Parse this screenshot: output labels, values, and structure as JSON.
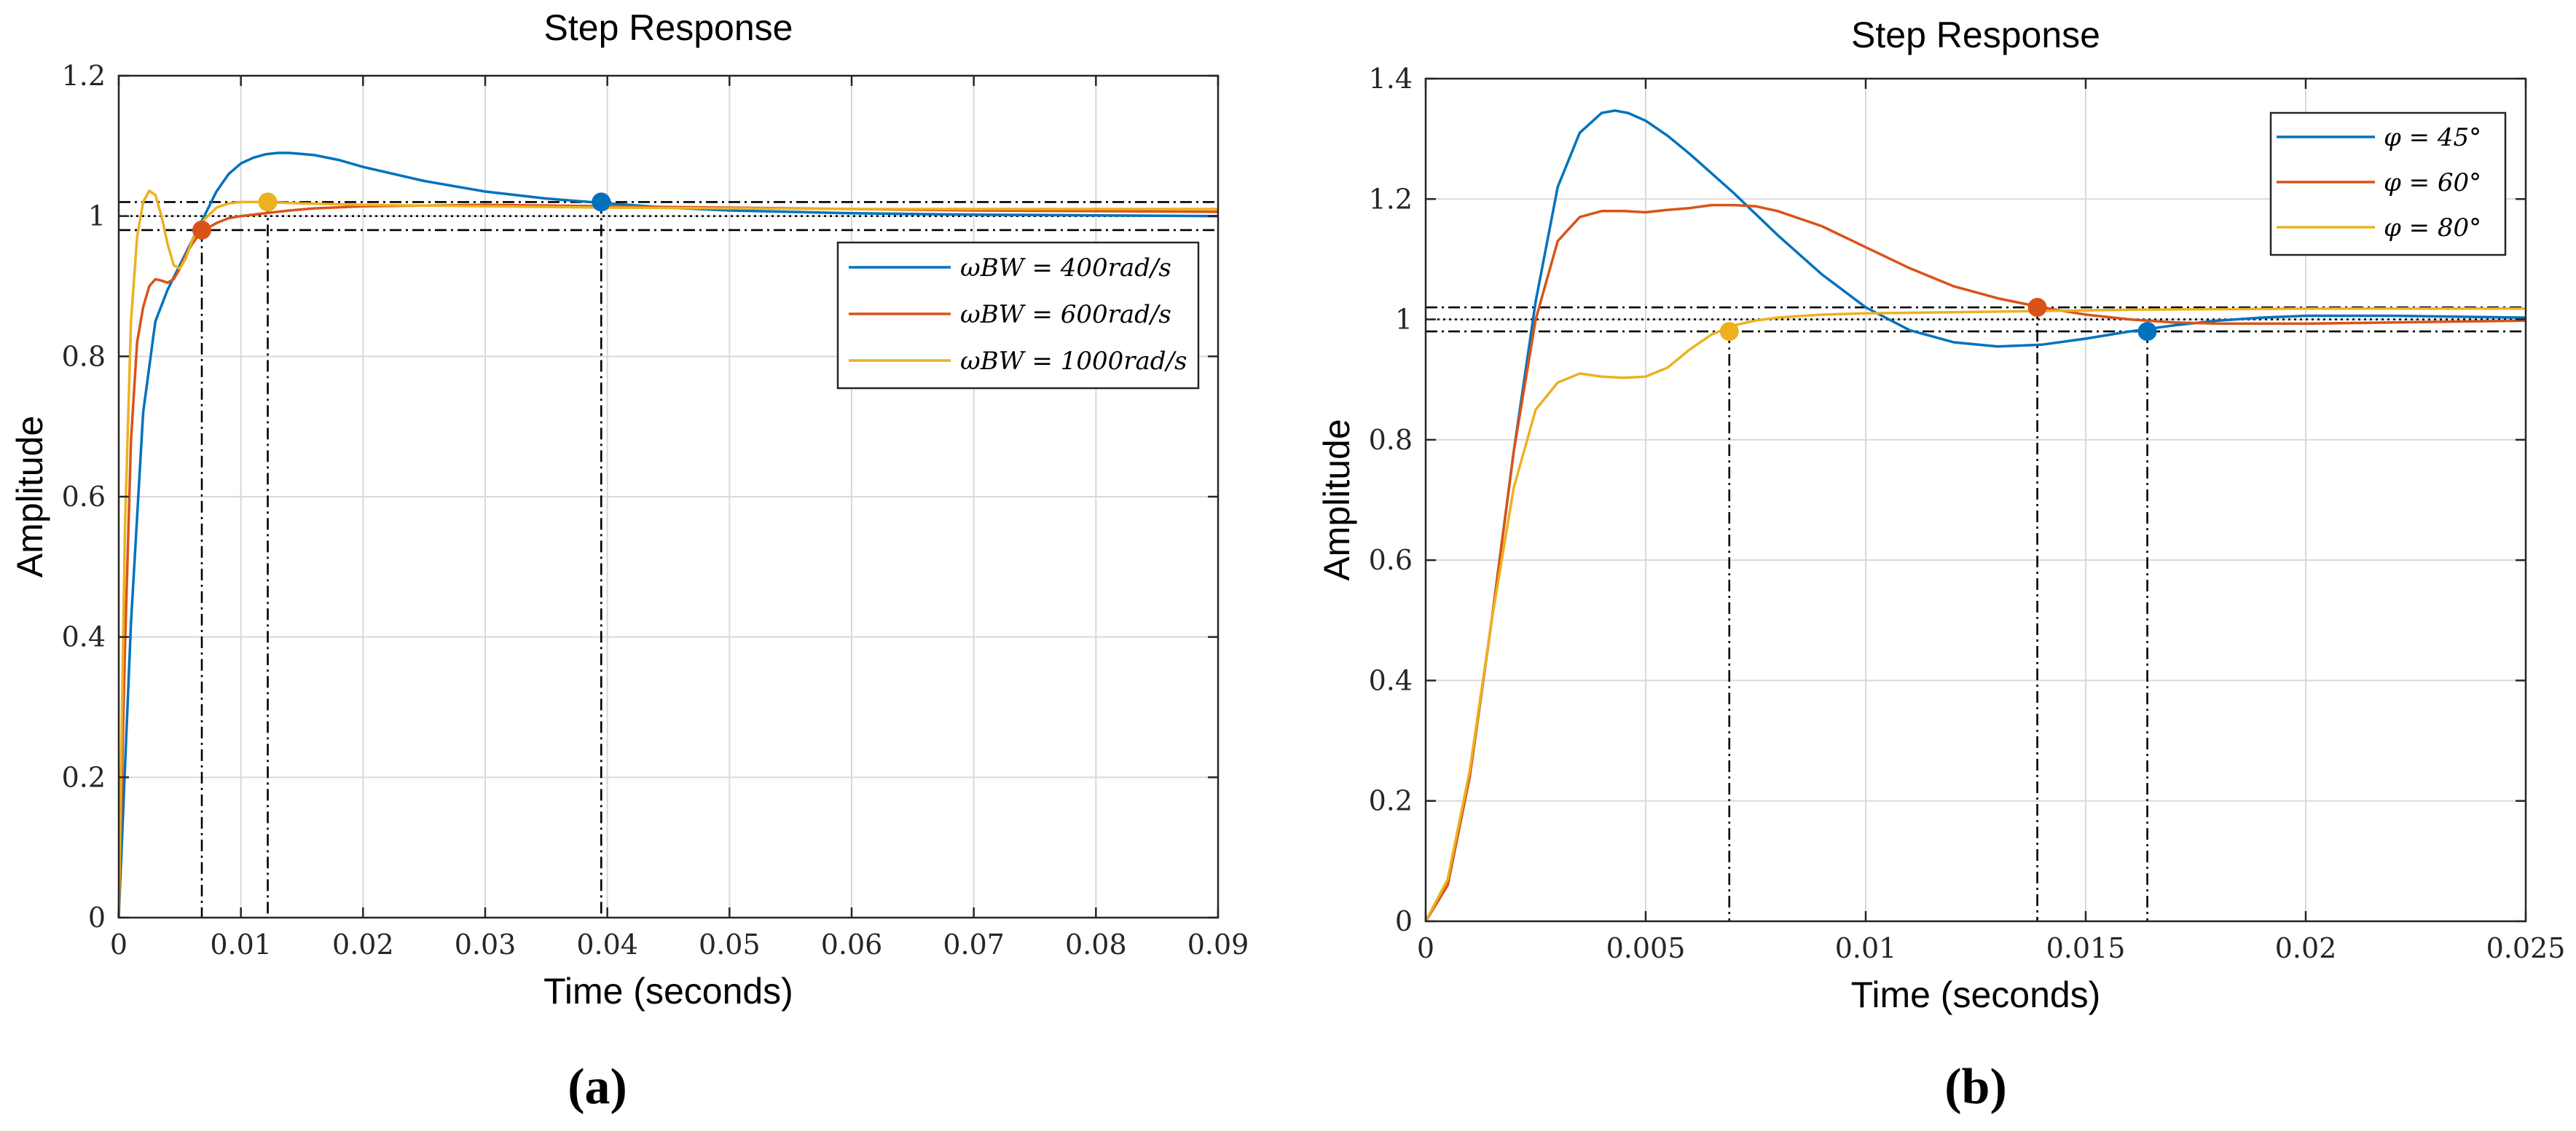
{
  "chart_data": [
    {
      "type": "line",
      "panel": "a",
      "caption": "(a)",
      "title": "Step Response",
      "xlabel": "Time (seconds)",
      "ylabel": "Amplitude",
      "xlim": [
        0,
        0.09
      ],
      "ylim": [
        0,
        1.2
      ],
      "xticks": [
        0,
        0.01,
        0.02,
        0.03,
        0.04,
        0.05,
        0.06,
        0.07,
        0.08,
        0.09
      ],
      "xtick_labels": [
        "0",
        "0.01",
        "0.02",
        "0.03",
        "0.04",
        "0.05",
        "0.06",
        "0.07",
        "0.08",
        "0.09"
      ],
      "yticks": [
        0,
        0.2,
        0.4,
        0.6,
        0.8,
        1,
        1.2
      ],
      "ytick_labels": [
        "0",
        "0.2",
        "0.4",
        "0.6",
        "0.8",
        "1",
        "1.2"
      ],
      "grid": true,
      "legend_position": "top-right",
      "series": [
        {
          "name": "ωBW = 400rad/s",
          "color": "#0072BD",
          "x": [
            0,
            0.001,
            0.002,
            0.003,
            0.004,
            0.005,
            0.006,
            0.007,
            0.008,
            0.009,
            0.01,
            0.011,
            0.012,
            0.013,
            0.014,
            0.016,
            0.018,
            0.02,
            0.025,
            0.03,
            0.035,
            0.04,
            0.045,
            0.05,
            0.06,
            0.07,
            0.08,
            0.09
          ],
          "y": [
            0,
            0.42,
            0.72,
            0.85,
            0.895,
            0.93,
            0.965,
            1.0,
            1.035,
            1.06,
            1.075,
            1.083,
            1.088,
            1.09,
            1.09,
            1.087,
            1.08,
            1.07,
            1.05,
            1.035,
            1.025,
            1.018,
            1.012,
            1.008,
            1.004,
            1.002,
            1.001,
            1.0
          ]
        },
        {
          "name": "ωBW = 600rad/s",
          "color": "#D95319",
          "x": [
            0,
            0.0005,
            0.001,
            0.0015,
            0.002,
            0.0025,
            0.003,
            0.0035,
            0.004,
            0.0045,
            0.005,
            0.0055,
            0.006,
            0.0065,
            0.007,
            0.008,
            0.009,
            0.01,
            0.012,
            0.014,
            0.016,
            0.02,
            0.03,
            0.04,
            0.05,
            0.06,
            0.07,
            0.08,
            0.09
          ],
          "y": [
            0,
            0.38,
            0.68,
            0.82,
            0.87,
            0.9,
            0.91,
            0.908,
            0.905,
            0.91,
            0.925,
            0.945,
            0.96,
            0.972,
            0.98,
            0.99,
            0.997,
            1.0,
            1.004,
            1.008,
            1.011,
            1.014,
            1.016,
            1.014,
            1.012,
            1.01,
            1.008,
            1.007,
            1.006
          ]
        },
        {
          "name": "ωBW = 1000rad/s",
          "color": "#EDB120",
          "x": [
            0,
            0.0005,
            0.001,
            0.0015,
            0.002,
            0.0025,
            0.003,
            0.0035,
            0.004,
            0.0045,
            0.005,
            0.0055,
            0.006,
            0.007,
            0.008,
            0.009,
            0.01,
            0.012,
            0.015,
            0.02,
            0.03,
            0.04,
            0.05,
            0.06,
            0.07,
            0.08,
            0.09
          ],
          "y": [
            0,
            0.55,
            0.85,
            0.97,
            1.02,
            1.036,
            1.03,
            1.0,
            0.96,
            0.93,
            0.925,
            0.94,
            0.965,
            0.995,
            1.012,
            1.018,
            1.02,
            1.02,
            1.018,
            1.016,
            1.014,
            1.012,
            1.011,
            1.01,
            1.01,
            1.01,
            1.01
          ]
        }
      ],
      "reference_lines": {
        "dashdot_y": [
          1.02,
          0.98
        ],
        "dotted_y": [
          1.0
        ]
      },
      "markers": [
        {
          "series": "ωBW = 600rad/s",
          "x": 0.0068,
          "y": 0.98
        },
        {
          "series": "ωBW = 1000rad/s",
          "x": 0.0122,
          "y": 1.02
        },
        {
          "series": "ωBW = 400rad/s",
          "x": 0.0395,
          "y": 1.02
        }
      ]
    },
    {
      "type": "line",
      "panel": "b",
      "caption": "(b)",
      "title": "Step Response",
      "xlabel": "Time (seconds)",
      "ylabel": "Amplitude",
      "xlim": [
        0,
        0.025
      ],
      "ylim": [
        0,
        1.4
      ],
      "xticks": [
        0,
        0.005,
        0.01,
        0.015,
        0.02,
        0.025
      ],
      "xtick_labels": [
        "0",
        "0.005",
        "0.01",
        "0.015",
        "0.02",
        "0.025"
      ],
      "yticks": [
        0,
        0.2,
        0.4,
        0.6,
        0.8,
        1,
        1.2,
        1.4
      ],
      "ytick_labels": [
        "0",
        "0.2",
        "0.4",
        "0.6",
        "0.8",
        "1",
        "1.2",
        "1.4"
      ],
      "grid": true,
      "legend_position": "top-right",
      "series": [
        {
          "name": "φ = 45°",
          "color": "#0072BD",
          "x": [
            0,
            0.0005,
            0.001,
            0.0015,
            0.002,
            0.0025,
            0.003,
            0.0035,
            0.004,
            0.0043,
            0.0046,
            0.005,
            0.0055,
            0.006,
            0.007,
            0.008,
            0.009,
            0.01,
            0.011,
            0.012,
            0.013,
            0.014,
            0.015,
            0.016,
            0.017,
            0.018,
            0.019,
            0.02,
            0.022,
            0.025
          ],
          "y": [
            0,
            0.06,
            0.24,
            0.5,
            0.78,
            1.03,
            1.22,
            1.31,
            1.343,
            1.347,
            1.343,
            1.33,
            1.305,
            1.275,
            1.21,
            1.14,
            1.075,
            1.02,
            0.982,
            0.962,
            0.955,
            0.958,
            0.968,
            0.98,
            0.99,
            0.998,
            1.003,
            1.006,
            1.006,
            1.003
          ]
        },
        {
          "name": "φ = 60°",
          "color": "#D95319",
          "x": [
            0,
            0.0005,
            0.001,
            0.0015,
            0.002,
            0.0025,
            0.003,
            0.0035,
            0.004,
            0.0045,
            0.005,
            0.0055,
            0.006,
            0.0065,
            0.007,
            0.0075,
            0.008,
            0.009,
            0.01,
            0.011,
            0.012,
            0.013,
            0.014,
            0.015,
            0.016,
            0.017,
            0.018,
            0.02,
            0.022,
            0.025
          ],
          "y": [
            0,
            0.06,
            0.24,
            0.5,
            0.78,
            1.0,
            1.13,
            1.17,
            1.18,
            1.18,
            1.178,
            1.182,
            1.185,
            1.19,
            1.19,
            1.188,
            1.18,
            1.155,
            1.12,
            1.085,
            1.055,
            1.035,
            1.02,
            1.008,
            1.0,
            0.995,
            0.993,
            0.993,
            0.995,
            0.998
          ]
        },
        {
          "name": "φ = 80°",
          "color": "#EDB120",
          "x": [
            0,
            0.0005,
            0.001,
            0.0015,
            0.002,
            0.0025,
            0.003,
            0.0035,
            0.004,
            0.0045,
            0.005,
            0.0055,
            0.006,
            0.0065,
            0.007,
            0.0075,
            0.008,
            0.009,
            0.01,
            0.012,
            0.014,
            0.016,
            0.018,
            0.02,
            0.022,
            0.025
          ],
          "y": [
            0,
            0.07,
            0.25,
            0.5,
            0.72,
            0.85,
            0.895,
            0.91,
            0.905,
            0.903,
            0.905,
            0.92,
            0.95,
            0.975,
            0.99,
            0.998,
            1.003,
            1.008,
            1.01,
            1.012,
            1.014,
            1.016,
            1.017,
            1.018,
            1.018,
            1.018
          ]
        }
      ],
      "reference_lines": {
        "dashdot_y": [
          1.02,
          0.98
        ],
        "dotted_y": [
          1.0
        ]
      },
      "markers": [
        {
          "series": "φ = 80°",
          "x": 0.0069,
          "y": 0.98
        },
        {
          "series": "φ = 60°",
          "x": 0.0139,
          "y": 1.02
        },
        {
          "series": "φ = 45°",
          "x": 0.0164,
          "y": 0.98
        }
      ]
    }
  ]
}
